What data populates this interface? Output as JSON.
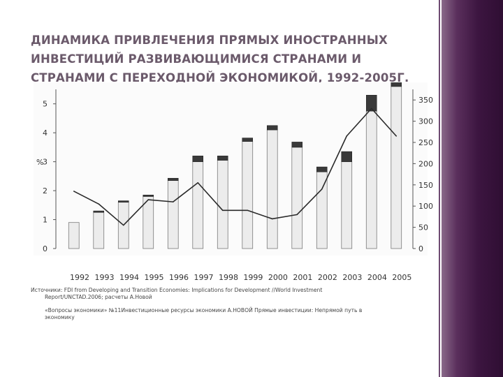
{
  "slide": {
    "title_lines": [
      "ДИНАМИКА ПРИВЛЕЧЕНИЯ ПРЯМЫХ ИНОСТРАННЫХ",
      "ИНВЕСТИЦИЙ РАЗВИВАЮЩИМИСЯ СТРАНАМИ И",
      "СТРАНАМИ С ПЕРЕХОДНОЙ ЭКОНОМИКОЙ, 1992-2005Г."
    ],
    "years_row": "1992 1993 1994 1995 1996 1997 1998 1999 2000 2001 2002 2003 2004 2005",
    "source_line1": "Источники: FDI from Developing and Transition Economies: Implications for Development //World Investment",
    "source_line2": "Report/UNCTAD.2006; расчеты А.Новой",
    "note_line1": "«Вопросы экономики» №11Инвестиционные ресурсы экономики А.НОВОЙ Прямые инвестиции: Непрямой путь в",
    "note_line2": "экономику"
  },
  "colors": {
    "bar_light": "#ececec",
    "bar_dark": "#3a3a3a",
    "line": "#2a2a2a",
    "title": "#6b5a6b",
    "band": "#3c1540"
  },
  "chart_data": {
    "type": "bar",
    "categories": [
      "1992",
      "1993",
      "1994",
      "1995",
      "1996",
      "1997",
      "1998",
      "1999",
      "2000",
      "2001",
      "2002",
      "2003",
      "2004",
      "2005"
    ],
    "left_axis": {
      "label": "%",
      "ticks": [
        "0",
        "1",
        "2",
        "3",
        "4",
        "5"
      ],
      "ylim": [
        0,
        5.5
      ]
    },
    "right_axis": {
      "ticks": [
        "0",
        "50",
        "100",
        "150",
        "200",
        "250",
        "300",
        "350"
      ],
      "ylim": [
        0,
        375
      ]
    },
    "series": [
      {
        "values": [
          0.9,
          1.25,
          1.6,
          1.8,
          2.35,
          3.0,
          3.05,
          3.7,
          4.1,
          3.5,
          2.65,
          3.0,
          4.75,
          5.6
        ]
      },
      {
        "values": [
          0.0,
          0.05,
          0.05,
          0.05,
          0.08,
          0.2,
          0.15,
          0.12,
          0.15,
          0.18,
          0.17,
          0.35,
          0.55,
          0.6
        ]
      },
      {
        "values": [
          135,
          105,
          55,
          115,
          110,
          155,
          90,
          90,
          70,
          80,
          140,
          265,
          330,
          265
        ]
      }
    ],
    "xlabel": "",
    "ylabel": "%",
    "grid": false,
    "legend": "none"
  }
}
